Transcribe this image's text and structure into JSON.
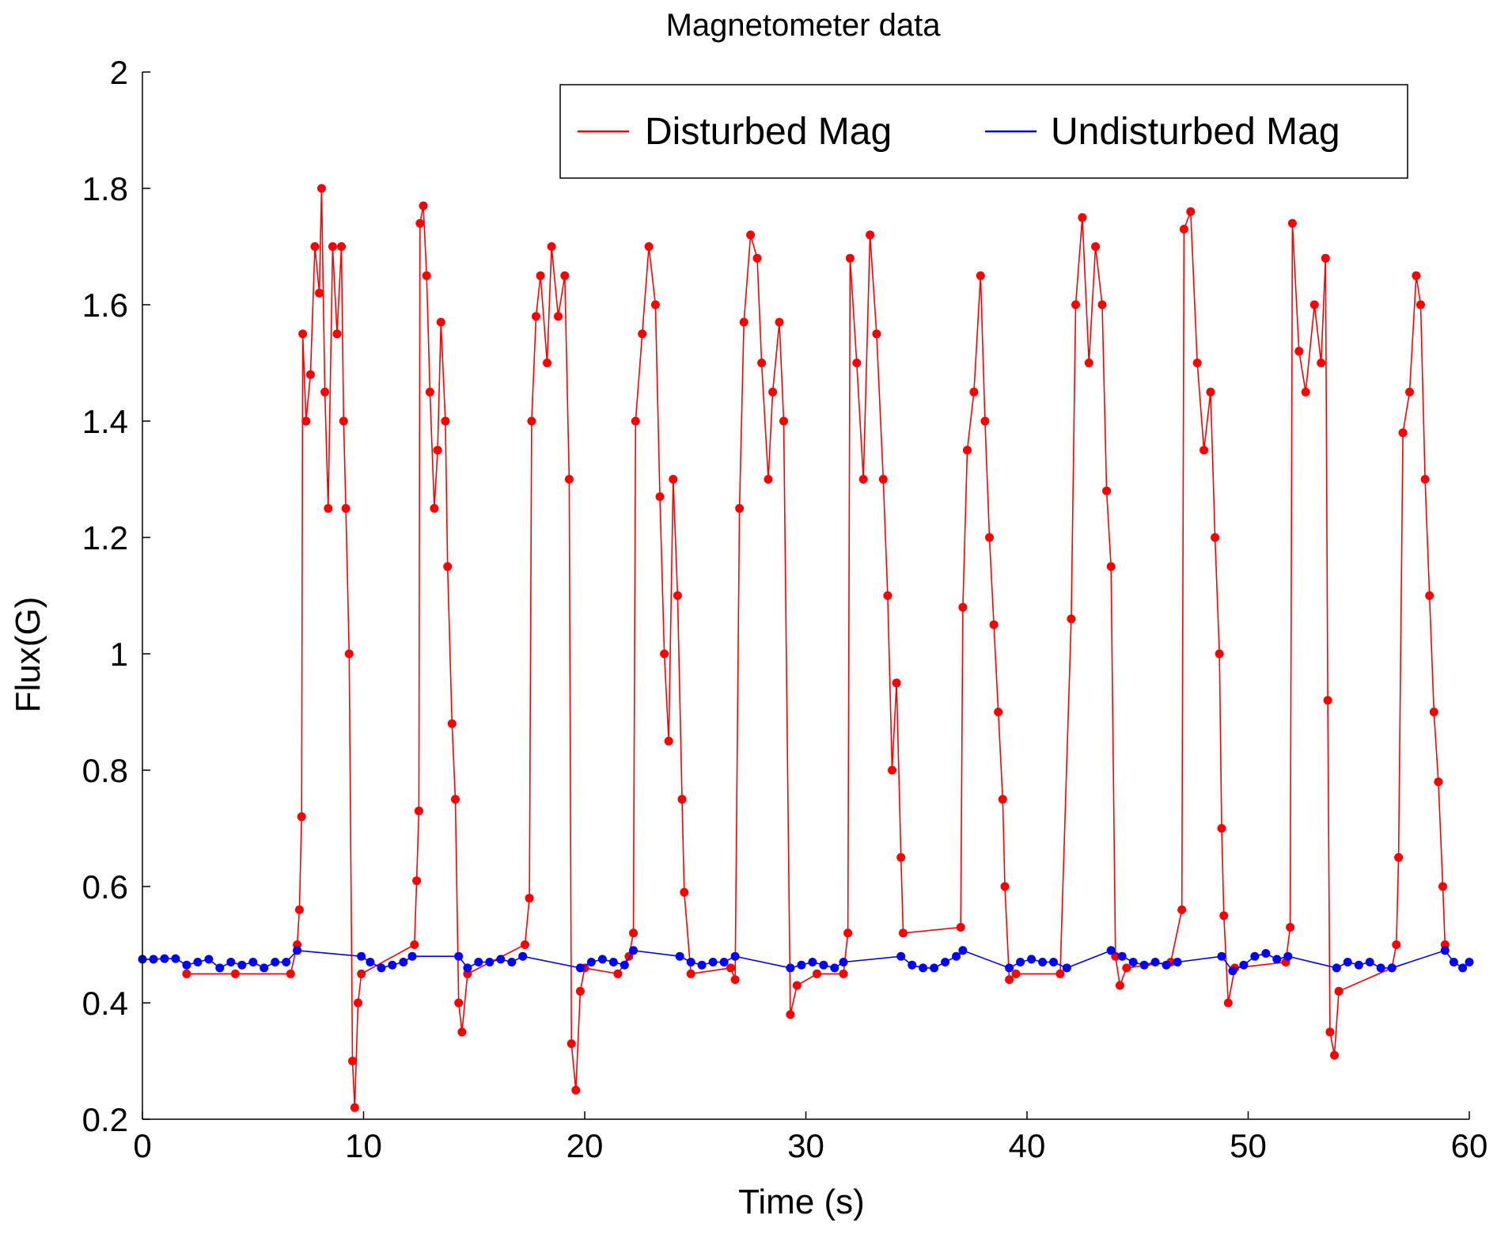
{
  "chart_data": {
    "type": "line",
    "title": "Magnetometer data",
    "xlabel": "Time (s)",
    "ylabel": "Flux(G)",
    "xlim": [
      0,
      60
    ],
    "ylim": [
      0.2,
      2.0
    ],
    "xticks": [
      0,
      10,
      20,
      30,
      40,
      50,
      60
    ],
    "xtick_labels": [
      "0",
      "10",
      "20",
      "30",
      "40",
      "50",
      "60"
    ],
    "yticks": [
      0.2,
      0.4,
      0.6,
      0.8,
      1.0,
      1.2,
      1.4,
      1.6,
      1.8,
      2.0
    ],
    "ytick_labels": [
      "0.2",
      "0.4",
      "0.6",
      "0.8",
      "1",
      "1.2",
      "1.4",
      "1.6",
      "1.8",
      "2"
    ],
    "grid": false,
    "legend": {
      "placement": "top-right",
      "orientation": "horizontal"
    },
    "series": [
      {
        "name": "Disturbed Mag",
        "color": "#ff0000",
        "markers": true,
        "points": [
          [
            2.0,
            0.45
          ],
          [
            4.2,
            0.45
          ],
          [
            6.7,
            0.45
          ],
          [
            7.0,
            0.5
          ],
          [
            7.1,
            0.56
          ],
          [
            7.2,
            0.72
          ],
          [
            7.25,
            1.55
          ],
          [
            7.4,
            1.4
          ],
          [
            7.6,
            1.48
          ],
          [
            7.8,
            1.7
          ],
          [
            8.0,
            1.62
          ],
          [
            8.1,
            1.8
          ],
          [
            8.25,
            1.45
          ],
          [
            8.4,
            1.25
          ],
          [
            8.6,
            1.7
          ],
          [
            8.8,
            1.55
          ],
          [
            9.0,
            1.7
          ],
          [
            9.1,
            1.4
          ],
          [
            9.2,
            1.25
          ],
          [
            9.35,
            1.0
          ],
          [
            9.5,
            0.3
          ],
          [
            9.6,
            0.22
          ],
          [
            9.75,
            0.4
          ],
          [
            9.9,
            0.45
          ],
          [
            12.3,
            0.5
          ],
          [
            12.4,
            0.61
          ],
          [
            12.5,
            0.73
          ],
          [
            12.55,
            1.74
          ],
          [
            12.7,
            1.77
          ],
          [
            12.85,
            1.65
          ],
          [
            13.0,
            1.45
          ],
          [
            13.2,
            1.25
          ],
          [
            13.35,
            1.35
          ],
          [
            13.5,
            1.57
          ],
          [
            13.7,
            1.4
          ],
          [
            13.8,
            1.15
          ],
          [
            14.0,
            0.88
          ],
          [
            14.15,
            0.75
          ],
          [
            14.3,
            0.4
          ],
          [
            14.45,
            0.35
          ],
          [
            14.7,
            0.45
          ],
          [
            17.3,
            0.5
          ],
          [
            17.5,
            0.58
          ],
          [
            17.6,
            1.4
          ],
          [
            17.8,
            1.58
          ],
          [
            18.0,
            1.65
          ],
          [
            18.3,
            1.5
          ],
          [
            18.5,
            1.7
          ],
          [
            18.8,
            1.58
          ],
          [
            19.1,
            1.65
          ],
          [
            19.3,
            1.3
          ],
          [
            19.4,
            0.33
          ],
          [
            19.6,
            0.25
          ],
          [
            19.8,
            0.42
          ],
          [
            20.0,
            0.46
          ],
          [
            21.5,
            0.45
          ],
          [
            22.0,
            0.48
          ],
          [
            22.2,
            0.52
          ],
          [
            22.3,
            1.4
          ],
          [
            22.6,
            1.55
          ],
          [
            22.9,
            1.7
          ],
          [
            23.2,
            1.6
          ],
          [
            23.4,
            1.27
          ],
          [
            23.6,
            1.0
          ],
          [
            23.8,
            0.85
          ],
          [
            24.0,
            1.3
          ],
          [
            24.2,
            1.1
          ],
          [
            24.4,
            0.75
          ],
          [
            24.5,
            0.59
          ],
          [
            24.8,
            0.45
          ],
          [
            26.6,
            0.46
          ],
          [
            26.8,
            0.44
          ],
          [
            27.0,
            1.25
          ],
          [
            27.2,
            1.57
          ],
          [
            27.5,
            1.72
          ],
          [
            27.8,
            1.68
          ],
          [
            28.0,
            1.5
          ],
          [
            28.3,
            1.3
          ],
          [
            28.5,
            1.45
          ],
          [
            28.8,
            1.57
          ],
          [
            29.0,
            1.4
          ],
          [
            29.3,
            0.38
          ],
          [
            29.6,
            0.43
          ],
          [
            30.5,
            0.45
          ],
          [
            31.7,
            0.45
          ],
          [
            31.9,
            0.52
          ],
          [
            32.0,
            1.68
          ],
          [
            32.3,
            1.5
          ],
          [
            32.6,
            1.3
          ],
          [
            32.9,
            1.72
          ],
          [
            33.2,
            1.55
          ],
          [
            33.5,
            1.3
          ],
          [
            33.7,
            1.1
          ],
          [
            33.9,
            0.8
          ],
          [
            34.1,
            0.95
          ],
          [
            34.3,
            0.65
          ],
          [
            34.4,
            0.52
          ],
          [
            37.0,
            0.53
          ],
          [
            37.1,
            1.08
          ],
          [
            37.3,
            1.35
          ],
          [
            37.6,
            1.45
          ],
          [
            37.9,
            1.65
          ],
          [
            38.1,
            1.4
          ],
          [
            38.3,
            1.2
          ],
          [
            38.5,
            1.05
          ],
          [
            38.7,
            0.9
          ],
          [
            38.9,
            0.75
          ],
          [
            39.0,
            0.6
          ],
          [
            39.2,
            0.44
          ],
          [
            39.5,
            0.45
          ],
          [
            41.5,
            0.45
          ],
          [
            42.0,
            1.06
          ],
          [
            42.2,
            1.6
          ],
          [
            42.5,
            1.75
          ],
          [
            42.8,
            1.5
          ],
          [
            43.1,
            1.7
          ],
          [
            43.4,
            1.6
          ],
          [
            43.6,
            1.28
          ],
          [
            43.8,
            1.15
          ],
          [
            44.0,
            0.48
          ],
          [
            44.2,
            0.43
          ],
          [
            44.5,
            0.46
          ],
          [
            46.5,
            0.47
          ],
          [
            47.0,
            0.56
          ],
          [
            47.1,
            1.73
          ],
          [
            47.4,
            1.76
          ],
          [
            47.7,
            1.5
          ],
          [
            48.0,
            1.35
          ],
          [
            48.3,
            1.45
          ],
          [
            48.5,
            1.2
          ],
          [
            48.7,
            1.0
          ],
          [
            48.8,
            0.7
          ],
          [
            48.9,
            0.55
          ],
          [
            49.1,
            0.4
          ],
          [
            49.4,
            0.46
          ],
          [
            51.7,
            0.47
          ],
          [
            51.9,
            0.53
          ],
          [
            52.0,
            1.74
          ],
          [
            52.3,
            1.52
          ],
          [
            52.6,
            1.45
          ],
          [
            53.0,
            1.6
          ],
          [
            53.3,
            1.5
          ],
          [
            53.5,
            1.68
          ],
          [
            53.6,
            0.92
          ],
          [
            53.7,
            0.35
          ],
          [
            53.9,
            0.31
          ],
          [
            54.1,
            0.42
          ],
          [
            56.5,
            0.46
          ],
          [
            56.7,
            0.5
          ],
          [
            56.8,
            0.65
          ],
          [
            57.0,
            1.38
          ],
          [
            57.3,
            1.45
          ],
          [
            57.6,
            1.65
          ],
          [
            57.8,
            1.6
          ],
          [
            58.0,
            1.3
          ],
          [
            58.2,
            1.1
          ],
          [
            58.4,
            0.9
          ],
          [
            58.6,
            0.78
          ],
          [
            58.8,
            0.6
          ],
          [
            58.9,
            0.5
          ]
        ]
      },
      {
        "name": "Undisturbed Mag",
        "color": "#0000ff",
        "markers": true,
        "points": [
          [
            0.0,
            0.475
          ],
          [
            0.5,
            0.475
          ],
          [
            1.0,
            0.476
          ],
          [
            1.5,
            0.476
          ],
          [
            2.0,
            0.465
          ],
          [
            2.5,
            0.47
          ],
          [
            3.0,
            0.475
          ],
          [
            3.5,
            0.46
          ],
          [
            4.0,
            0.47
          ],
          [
            4.5,
            0.465
          ],
          [
            5.0,
            0.47
          ],
          [
            5.5,
            0.46
          ],
          [
            6.0,
            0.47
          ],
          [
            6.5,
            0.47
          ],
          [
            7.0,
            0.49
          ],
          [
            9.9,
            0.48
          ],
          [
            10.3,
            0.47
          ],
          [
            10.8,
            0.46
          ],
          [
            11.3,
            0.465
          ],
          [
            11.8,
            0.47
          ],
          [
            12.2,
            0.48
          ],
          [
            14.3,
            0.48
          ],
          [
            14.7,
            0.46
          ],
          [
            15.2,
            0.47
          ],
          [
            15.7,
            0.47
          ],
          [
            16.2,
            0.475
          ],
          [
            16.7,
            0.47
          ],
          [
            17.2,
            0.48
          ],
          [
            19.8,
            0.46
          ],
          [
            20.3,
            0.47
          ],
          [
            20.8,
            0.475
          ],
          [
            21.3,
            0.47
          ],
          [
            21.8,
            0.465
          ],
          [
            22.2,
            0.49
          ],
          [
            24.3,
            0.48
          ],
          [
            24.8,
            0.47
          ],
          [
            25.3,
            0.465
          ],
          [
            25.8,
            0.47
          ],
          [
            26.3,
            0.47
          ],
          [
            26.8,
            0.48
          ],
          [
            29.3,
            0.46
          ],
          [
            29.8,
            0.465
          ],
          [
            30.3,
            0.47
          ],
          [
            30.8,
            0.465
          ],
          [
            31.3,
            0.46
          ],
          [
            31.7,
            0.47
          ],
          [
            34.3,
            0.48
          ],
          [
            34.8,
            0.465
          ],
          [
            35.3,
            0.46
          ],
          [
            35.8,
            0.46
          ],
          [
            36.3,
            0.47
          ],
          [
            36.8,
            0.48
          ],
          [
            37.1,
            0.49
          ],
          [
            39.2,
            0.46
          ],
          [
            39.7,
            0.47
          ],
          [
            40.2,
            0.475
          ],
          [
            40.7,
            0.47
          ],
          [
            41.2,
            0.47
          ],
          [
            41.8,
            0.46
          ],
          [
            43.8,
            0.49
          ],
          [
            44.3,
            0.48
          ],
          [
            44.8,
            0.47
          ],
          [
            45.3,
            0.465
          ],
          [
            45.8,
            0.47
          ],
          [
            46.3,
            0.465
          ],
          [
            46.8,
            0.47
          ],
          [
            48.8,
            0.48
          ],
          [
            49.3,
            0.455
          ],
          [
            49.8,
            0.465
          ],
          [
            50.3,
            0.48
          ],
          [
            50.8,
            0.485
          ],
          [
            51.3,
            0.475
          ],
          [
            51.8,
            0.48
          ],
          [
            54.0,
            0.46
          ],
          [
            54.5,
            0.47
          ],
          [
            55.0,
            0.465
          ],
          [
            55.5,
            0.47
          ],
          [
            56.0,
            0.46
          ],
          [
            56.5,
            0.46
          ],
          [
            58.9,
            0.49
          ],
          [
            59.3,
            0.47
          ],
          [
            59.7,
            0.46
          ],
          [
            60.0,
            0.47
          ]
        ]
      }
    ]
  }
}
